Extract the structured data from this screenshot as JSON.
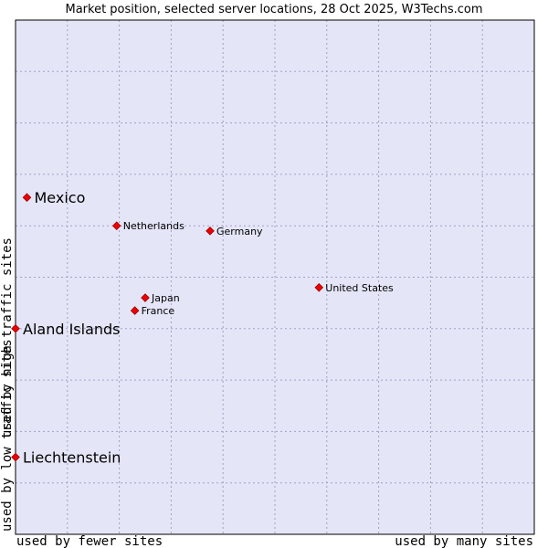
{
  "chart_data": {
    "type": "scatter",
    "title": "Market position, selected server locations, 28 Oct 2025, W3Techs.com",
    "xlabel_left": "used by fewer sites",
    "xlabel_right": "used by many sites",
    "ylabel_bottom": "used by low traffic sites",
    "ylabel_top": "used by high traffic sites",
    "xlim": [
      0,
      100
    ],
    "ylim": [
      0,
      100
    ],
    "grid": true,
    "colors": {
      "plot_background": "#e4e6f8",
      "grid": "#a0a0c0",
      "point": "#ee0000",
      "border": "#000000"
    },
    "points": [
      {
        "label": "Mexico",
        "x": 2.2,
        "y": 65.5,
        "emphasis": true
      },
      {
        "label": "Netherlands",
        "x": 19.5,
        "y": 60.0,
        "emphasis": false
      },
      {
        "label": "Germany",
        "x": 37.5,
        "y": 59.0,
        "emphasis": false
      },
      {
        "label": "United States",
        "x": 58.5,
        "y": 48.0,
        "emphasis": false
      },
      {
        "label": "Japan",
        "x": 25.0,
        "y": 46.0,
        "emphasis": false
      },
      {
        "label": "France",
        "x": 23.0,
        "y": 43.5,
        "emphasis": false
      },
      {
        "label": "Aland Islands",
        "x": 0.0,
        "y": 40.0,
        "emphasis": true
      },
      {
        "label": "Liechtenstein",
        "x": 0.0,
        "y": 15.0,
        "emphasis": true
      }
    ]
  }
}
